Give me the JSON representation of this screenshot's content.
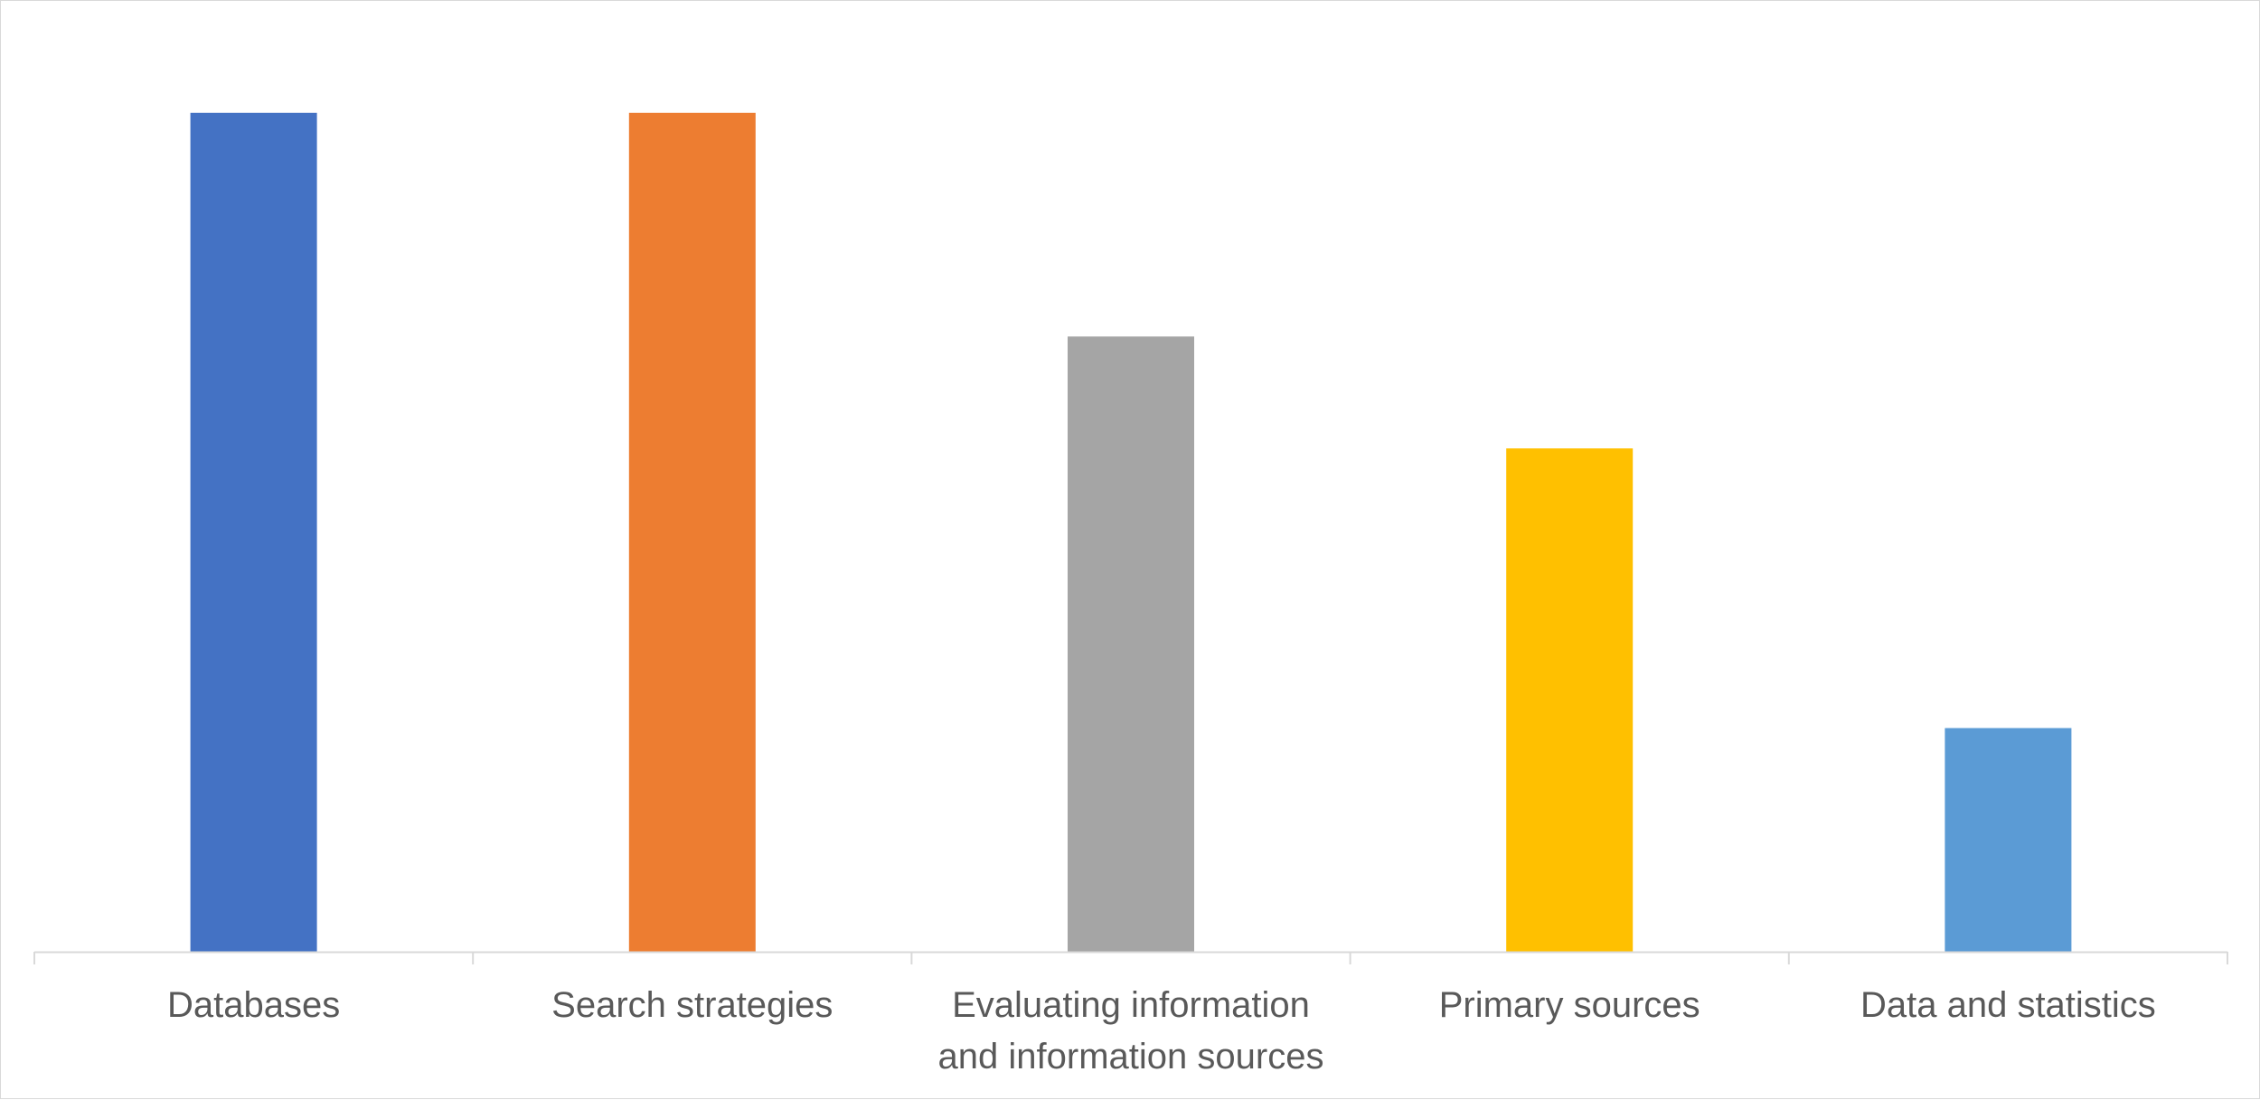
{
  "chart_data": {
    "type": "bar",
    "categories": [
      [
        "Databases"
      ],
      [
        "Search strategies"
      ],
      [
        "Evaluating information",
        "and information sources"
      ],
      [
        "Primary sources"
      ],
      [
        "Data and statistics"
      ]
    ],
    "values": [
      7.5,
      7.5,
      5.5,
      4.5,
      2
    ],
    "colors": [
      "#4472C4",
      "#ED7D31",
      "#A5A5A5",
      "#FFC000",
      "#5B9BD5"
    ],
    "ylim": [
      0,
      8.5
    ],
    "grid": false,
    "legend": "none",
    "axis_color": "#d9d9d9"
  }
}
